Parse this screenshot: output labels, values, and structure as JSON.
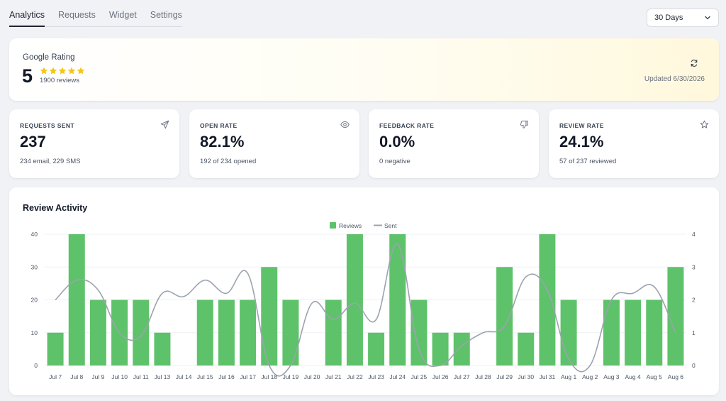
{
  "tabs": [
    {
      "label": "Analytics",
      "active": true
    },
    {
      "label": "Requests",
      "active": false
    },
    {
      "label": "Widget",
      "active": false
    },
    {
      "label": "Settings",
      "active": false
    }
  ],
  "range": {
    "value": "30 Days"
  },
  "rating": {
    "title": "Google Rating",
    "value": "5",
    "star_count": 5,
    "count_label": "1900 reviews",
    "updated_label": "Updated 6/30/2026"
  },
  "stats": [
    {
      "label": "REQUESTS SENT",
      "value": "237",
      "sub": "234 email, 229 SMS",
      "icon": "send-icon"
    },
    {
      "label": "OPEN RATE",
      "value": "82.1%",
      "sub": "192 of 234 opened",
      "icon": "eye-icon"
    },
    {
      "label": "FEEDBACK RATE",
      "value": "0.0%",
      "sub": "0 negative",
      "icon": "thumbs-down-icon"
    },
    {
      "label": "REVIEW RATE",
      "value": "24.1%",
      "sub": "57 of 237 reviewed",
      "icon": "star-outline-icon"
    }
  ],
  "colors": {
    "bar": "#5ec26a",
    "line": "#9ca3af",
    "star": "#f5c518"
  },
  "chart_data": {
    "type": "bar",
    "title": "Review Activity",
    "categories": [
      "Jul 7",
      "Jul 8",
      "Jul 9",
      "Jul 10",
      "Jul 11",
      "Jul 13",
      "Jul 14",
      "Jul 15",
      "Jul 16",
      "Jul 17",
      "Jul 18",
      "Jul 19",
      "Jul 20",
      "Jul 21",
      "Jul 22",
      "Jul 23",
      "Jul 24",
      "Jul 25",
      "Jul 26",
      "Jul 27",
      "Jul 28",
      "Jul 29",
      "Jul 30",
      "Jul 31",
      "Aug 1",
      "Aug 2",
      "Aug 3",
      "Aug 4",
      "Aug 5",
      "Aug 6"
    ],
    "series": [
      {
        "name": "Reviews",
        "type": "bar",
        "axis": "left",
        "values": [
          10,
          40,
          20,
          20,
          20,
          10,
          0,
          20,
          20,
          20,
          30,
          20,
          0,
          20,
          40,
          10,
          40,
          20,
          10,
          10,
          0,
          30,
          10,
          40,
          20,
          0,
          20,
          20,
          20,
          30
        ]
      },
      {
        "name": "Sent",
        "type": "line",
        "axis": "right",
        "values": [
          2.0,
          2.6,
          2.3,
          1.0,
          0.9,
          2.2,
          2.1,
          2.6,
          2.2,
          2.8,
          0.0,
          0.0,
          1.9,
          1.4,
          1.9,
          1.4,
          3.7,
          0.5,
          0.0,
          0.6,
          1.0,
          1.2,
          2.7,
          2.3,
          0.2,
          0.0,
          2.0,
          2.2,
          2.4,
          1.0
        ]
      }
    ],
    "y_left": {
      "ticks": [
        0,
        10,
        20,
        30,
        40
      ],
      "lim": [
        0,
        40
      ]
    },
    "y_right": {
      "ticks": [
        0,
        1,
        2,
        3,
        4
      ],
      "lim": [
        0,
        4
      ]
    },
    "legend_position": "top-center",
    "grid": true
  }
}
